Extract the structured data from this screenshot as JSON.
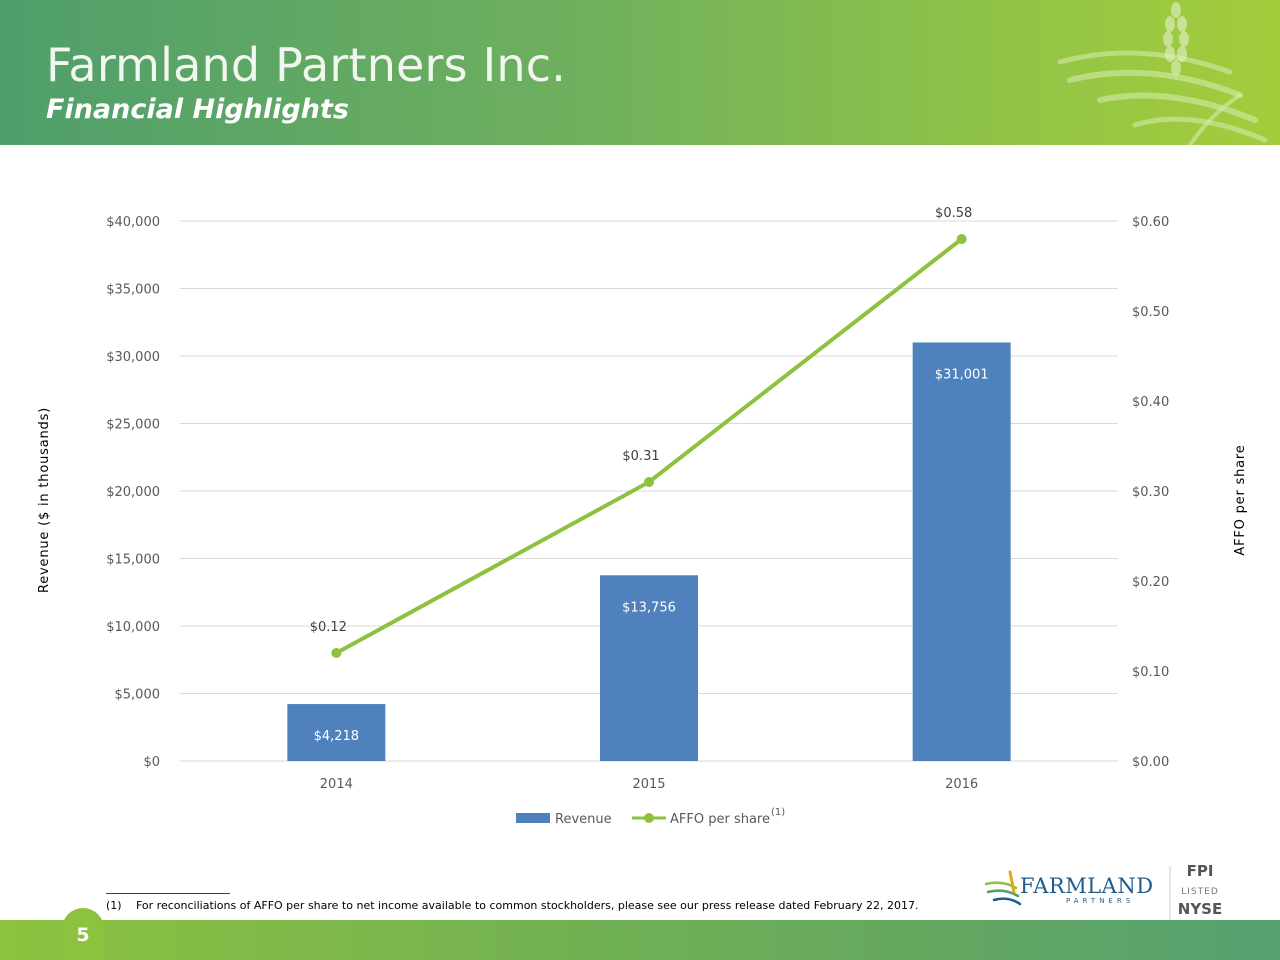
{
  "header": {
    "title": "Farmland Partners Inc.",
    "subtitle": "Financial Highlights"
  },
  "chart_data": {
    "type": "bar",
    "categories": [
      "2014",
      "2015",
      "2016"
    ],
    "series": [
      {
        "name": "Revenue",
        "type": "bar",
        "axis": "left",
        "values": [
          4218,
          13756,
          31001
        ],
        "labels": [
          "$4,218",
          "$13,756",
          "$31,001"
        ],
        "color": "#4f81bd"
      },
      {
        "name": "AFFO per share",
        "type": "line",
        "axis": "right",
        "values": [
          0.12,
          0.31,
          0.58
        ],
        "labels": [
          "$0.12",
          "$0.31",
          "$0.58"
        ],
        "color": "#8dc13f"
      }
    ],
    "ylabel": "Revenue ($ in thousands)",
    "y2label": "AFFO per share",
    "ylim": [
      0,
      40000
    ],
    "y2lim": [
      0,
      0.6
    ],
    "yticks": [
      "$0",
      "$5,000",
      "$10,000",
      "$15,000",
      "$20,000",
      "$25,000",
      "$30,000",
      "$35,000",
      "$40,000"
    ],
    "y2ticks": [
      "$0.00",
      "$0.10",
      "$0.20",
      "$0.30",
      "$0.40",
      "$0.50",
      "$0.60"
    ],
    "grid": true,
    "legend": "bottom",
    "legend_note": "(1)"
  },
  "footnote": {
    "number": "(1)",
    "text": "For reconciliations of AFFO per share to net income available to common stockholders, please see our press release dated February 22, 2017."
  },
  "brand": {
    "name": "FARMLAND",
    "tagline": "PARTNERS",
    "ticker": "FPI",
    "listed": "LISTED",
    "exchange": "NYSE"
  },
  "page_number": "5",
  "colors": {
    "header_start": "#4f9e6b",
    "header_end": "#a4cd3c",
    "bar": "#4f81bd",
    "line": "#8dc13f",
    "brand_green": "#5a9a4a",
    "brand_blue": "#1f5c8c"
  }
}
